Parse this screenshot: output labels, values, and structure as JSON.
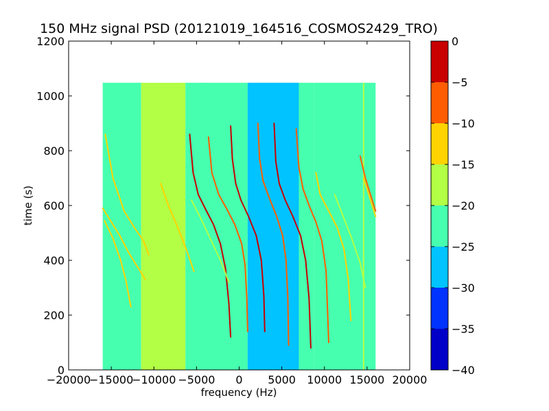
{
  "chart_data": {
    "type": "heatmap",
    "title": "150 MHz signal PSD (20121019_164516_COSMOS2429_TRO)",
    "xlabel": "frequency (Hz)",
    "ylabel": "time (s)",
    "xlim": [
      -20000,
      20000
    ],
    "ylim": [
      0,
      1200
    ],
    "xticks": [
      -20000,
      -15000,
      -10000,
      -5000,
      0,
      5000,
      10000,
      15000,
      20000
    ],
    "yticks": [
      0,
      200,
      400,
      600,
      800,
      1000,
      1200
    ],
    "data_extent": {
      "x": [
        -16000,
        16000
      ],
      "y": [
        0,
        1048
      ]
    },
    "background_bands": [
      {
        "x": [
          -16000,
          -11500
        ],
        "level": -23
      },
      {
        "x": [
          -11500,
          -6300
        ],
        "level": -18
      },
      {
        "x": [
          -6300,
          1000
        ],
        "level": -23
      },
      {
        "x": [
          1000,
          7000
        ],
        "level": -28
      },
      {
        "x": [
          7000,
          8800
        ],
        "level": -24
      },
      {
        "x": [
          8800,
          14500
        ],
        "level": -23
      },
      {
        "x": [
          14500,
          16000
        ],
        "level": -20
      }
    ],
    "traces": [
      {
        "x": [
          -15700,
          -14800,
          -13500,
          -12300,
          -11200,
          -10600
        ],
        "y": [
          860,
          700,
          580,
          520,
          470,
          420
        ],
        "level": -12
      },
      {
        "x": [
          -16000,
          -15000,
          -14000,
          -13000,
          -12000,
          -11000
        ],
        "y": [
          590,
          540,
          490,
          430,
          380,
          330
        ],
        "level": -12
      },
      {
        "x": [
          -15800,
          -14800,
          -13900,
          -13300,
          -12700
        ],
        "y": [
          545,
          480,
          400,
          330,
          230
        ],
        "level": -14
      },
      {
        "x": [
          -9200,
          -8300,
          -7200,
          -6200,
          -5300
        ],
        "y": [
          680,
          600,
          520,
          440,
          360
        ],
        "level": -14
      },
      {
        "x": [
          -5800,
          -5400,
          -4800,
          -4000,
          -3000,
          -2200,
          -1600,
          -1200,
          -1000
        ],
        "y": [
          860,
          720,
          640,
          590,
          530,
          460,
          370,
          240,
          120
        ],
        "level": -3
      },
      {
        "x": [
          -3600,
          -3200,
          -2400,
          -1500,
          -500,
          300,
          700,
          900,
          1000
        ],
        "y": [
          850,
          720,
          640,
          590,
          530,
          460,
          380,
          260,
          140
        ],
        "level": -5
      },
      {
        "x": [
          -1000,
          -800,
          -400,
          200,
          1100,
          2000,
          2600,
          2900,
          3000
        ],
        "y": [
          890,
          770,
          680,
          620,
          560,
          490,
          400,
          270,
          140
        ],
        "level": -2
      },
      {
        "x": [
          2200,
          2400,
          2800,
          3500,
          4400,
          5100,
          5500,
          5700,
          5800
        ],
        "y": [
          900,
          770,
          690,
          630,
          560,
          490,
          400,
          270,
          90
        ],
        "level": -5
      },
      {
        "x": [
          4100,
          4300,
          4700,
          5400,
          6300,
          7200,
          7800,
          8200,
          8400
        ],
        "y": [
          900,
          760,
          680,
          620,
          560,
          490,
          400,
          260,
          80
        ],
        "level": -3
      },
      {
        "x": [
          6700,
          7000,
          7500,
          8200,
          9000,
          9700,
          10200,
          10500
        ],
        "y": [
          880,
          740,
          660,
          600,
          540,
          470,
          360,
          100
        ],
        "level": -8
      },
      {
        "x": [
          9000,
          9500,
          10500,
          11500,
          12300,
          12800,
          13100
        ],
        "y": [
          720,
          640,
          580,
          520,
          440,
          330,
          180
        ],
        "level": -12
      },
      {
        "x": [
          14200,
          14800,
          15400,
          16000
        ],
        "y": [
          780,
          700,
          640,
          580
        ],
        "level": -9
      },
      {
        "x": [
          14600,
          15200,
          16000
        ],
        "y": [
          700,
          640,
          560
        ],
        "level": -12
      },
      {
        "x": [
          -5600,
          -4600,
          -3400,
          -2200,
          -1200
        ],
        "y": [
          620,
          560,
          480,
          400,
          320
        ],
        "level": -16
      },
      {
        "x": [
          11200,
          12200,
          13200,
          14200,
          14800
        ],
        "y": [
          640,
          560,
          480,
          390,
          300
        ],
        "level": -16
      }
    ],
    "vertical_lines": [
      {
        "x": -3800,
        "y": [
          0,
          1048
        ],
        "level": -21
      },
      {
        "x": 14600,
        "y": [
          0,
          1048
        ],
        "level": -19
      }
    ],
    "colorbar": {
      "ticks": [
        0,
        -5,
        -10,
        -15,
        -20,
        -25,
        -30,
        -35,
        -40
      ],
      "levels": [
        {
          "range": [
            -40,
            -35
          ],
          "color": "#0000c8"
        },
        {
          "range": [
            -35,
            -30
          ],
          "color": "#0033ff"
        },
        {
          "range": [
            -30,
            -25
          ],
          "color": "#00c3ff"
        },
        {
          "range": [
            -25,
            -20
          ],
          "color": "#46ffaf"
        },
        {
          "range": [
            -20,
            -15
          ],
          "color": "#b2ff46"
        },
        {
          "range": [
            -15,
            -10
          ],
          "color": "#ffd300"
        },
        {
          "range": [
            -10,
            -5
          ],
          "color": "#ff5d00"
        },
        {
          "range": [
            -5,
            0
          ],
          "color": "#c80000"
        }
      ]
    }
  }
}
